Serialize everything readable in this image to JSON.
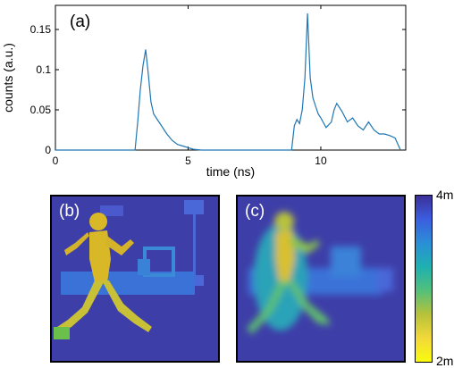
{
  "chart_data": {
    "type": "line",
    "panel_label": "(a)",
    "xlabel": "time (ns)",
    "ylabel": "counts (a.u.)",
    "xlim": [
      0,
      13.2
    ],
    "ylim": [
      0,
      0.18
    ],
    "xticks": [
      "0",
      "5",
      "10"
    ],
    "yticks": [
      "0",
      "0.05",
      "0.1",
      "0.15"
    ],
    "line_color": "#1f77b4",
    "series": [
      {
        "values_x": [
          0.0,
          3.0,
          3.1,
          3.2,
          3.3,
          3.4,
          3.5,
          3.6,
          3.7,
          3.8,
          3.9,
          4.0,
          4.2,
          4.4,
          4.6,
          4.8,
          5.0,
          5.2,
          5.5,
          8.9,
          9.0,
          9.1,
          9.2,
          9.3,
          9.4,
          9.5,
          9.6,
          9.7,
          9.8,
          9.9,
          10.0,
          10.2,
          10.4,
          10.5,
          10.6,
          10.8,
          11.0,
          11.2,
          11.4,
          11.6,
          11.8,
          12.0,
          12.2,
          12.4,
          12.6,
          12.8,
          13.0
        ],
        "values_y": [
          0.0,
          0.0,
          0.035,
          0.075,
          0.105,
          0.125,
          0.095,
          0.06,
          0.045,
          0.04,
          0.035,
          0.03,
          0.02,
          0.012,
          0.007,
          0.005,
          0.003,
          0.001,
          0.0,
          0.0,
          0.03,
          0.038,
          0.033,
          0.05,
          0.09,
          0.17,
          0.09,
          0.065,
          0.055,
          0.045,
          0.04,
          0.028,
          0.035,
          0.05,
          0.058,
          0.048,
          0.035,
          0.04,
          0.03,
          0.025,
          0.035,
          0.025,
          0.02,
          0.02,
          0.018,
          0.015,
          0.0
        ]
      }
    ]
  },
  "panel_b": {
    "label": "(b)"
  },
  "panel_c": {
    "label": "(c)"
  },
  "colorbar": {
    "top_label": "4m",
    "bottom_label": "2m",
    "colors": [
      "#3d2f99",
      "#3b5ee0",
      "#2a8fd6",
      "#1fb0b0",
      "#52c07a",
      "#b7c23a",
      "#f2d83a",
      "#f9fb0e"
    ]
  },
  "scene_colors": {
    "background": "#3e3ea8",
    "runner": "#d8b826",
    "runner_legs": "#c8c036",
    "foot": "#6ac04a",
    "objects": "#3a72d8",
    "far": "#4a5acc"
  }
}
